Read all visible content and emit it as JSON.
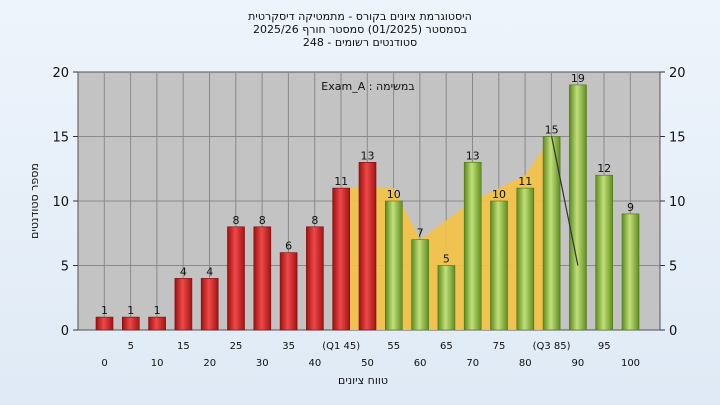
{
  "chart_data": {
    "type": "bar",
    "title_lines": [
      "היסטוגרמת ציונים בקורס - מתמטיקה דיסקרטית",
      "בסמסטר (01/2025) סמסטר חורף 2025/26",
      "סטודנטים רשומים - 248"
    ],
    "xlabel": "טווח ציונים",
    "ylabel": "מספר סטודנטים",
    "annotation": "במשימה : Exam_A",
    "ylim": [
      0,
      20
    ],
    "yticks": [
      0,
      5,
      10,
      15,
      20
    ],
    "grid": true,
    "categories": [
      "0",
      "5",
      "10",
      "15",
      "20",
      "25",
      "30",
      "35",
      "40",
      "(Q1 45)",
      "50",
      "55",
      "60",
      "65",
      "70",
      "75",
      "80",
      "(Q3 85)",
      "90",
      "95",
      "100"
    ],
    "values": [
      1,
      1,
      1,
      4,
      4,
      8,
      8,
      6,
      8,
      11,
      13,
      10,
      7,
      5,
      13,
      10,
      11,
      15,
      19,
      12,
      9
    ],
    "bar_colors": [
      "#d42a2a",
      "#d42a2a",
      "#d42a2a",
      "#d42a2a",
      "#d42a2a",
      "#d42a2a",
      "#d42a2a",
      "#d42a2a",
      "#d42a2a",
      "#d42a2a",
      "#d42a2a",
      "#8cbf3a",
      "#8cbf3a",
      "#8cbf3a",
      "#8cbf3a",
      "#8cbf3a",
      "#8cbf3a",
      "#8cbf3a",
      "#8cbf3a",
      "#8cbf3a",
      "#8cbf3a"
    ],
    "area": {
      "color": "#f5c242",
      "categories": [
        "(Q1 45)",
        "50",
        "55",
        "60",
        "65",
        "70",
        "75",
        "80",
        "(Q3 85)"
      ],
      "values": [
        11,
        11,
        11,
        7,
        8.5,
        10,
        11,
        12,
        15
      ]
    },
    "whisker": {
      "color": "#333333",
      "points": [
        [
          "(Q3 85)",
          15
        ],
        [
          "90",
          5
        ]
      ]
    }
  }
}
